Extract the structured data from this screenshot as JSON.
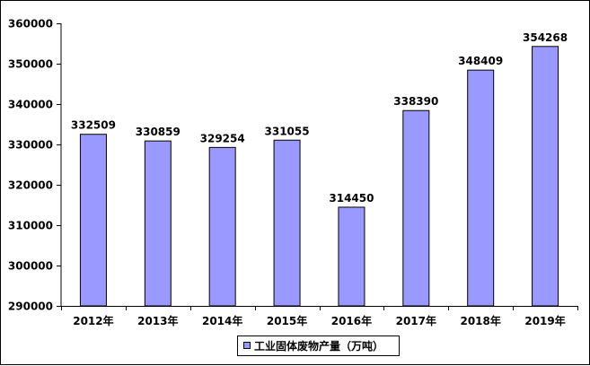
{
  "chart_data": {
    "type": "bar",
    "categories": [
      "2012年",
      "2013年",
      "2014年",
      "2015年",
      "2016年",
      "2017年",
      "2018年",
      "2019年"
    ],
    "series": [
      {
        "name": "工业固体废物产量（万吨）",
        "values": [
          332509,
          330859,
          329254,
          331055,
          314450,
          338390,
          348409,
          354268
        ],
        "color": "#9999FF"
      }
    ],
    "ylim": [
      290000,
      360000
    ],
    "yticks": [
      290000,
      300000,
      310000,
      320000,
      330000,
      340000,
      350000,
      360000
    ],
    "grid": false,
    "legend_position": "bottom",
    "data_labels": true
  }
}
